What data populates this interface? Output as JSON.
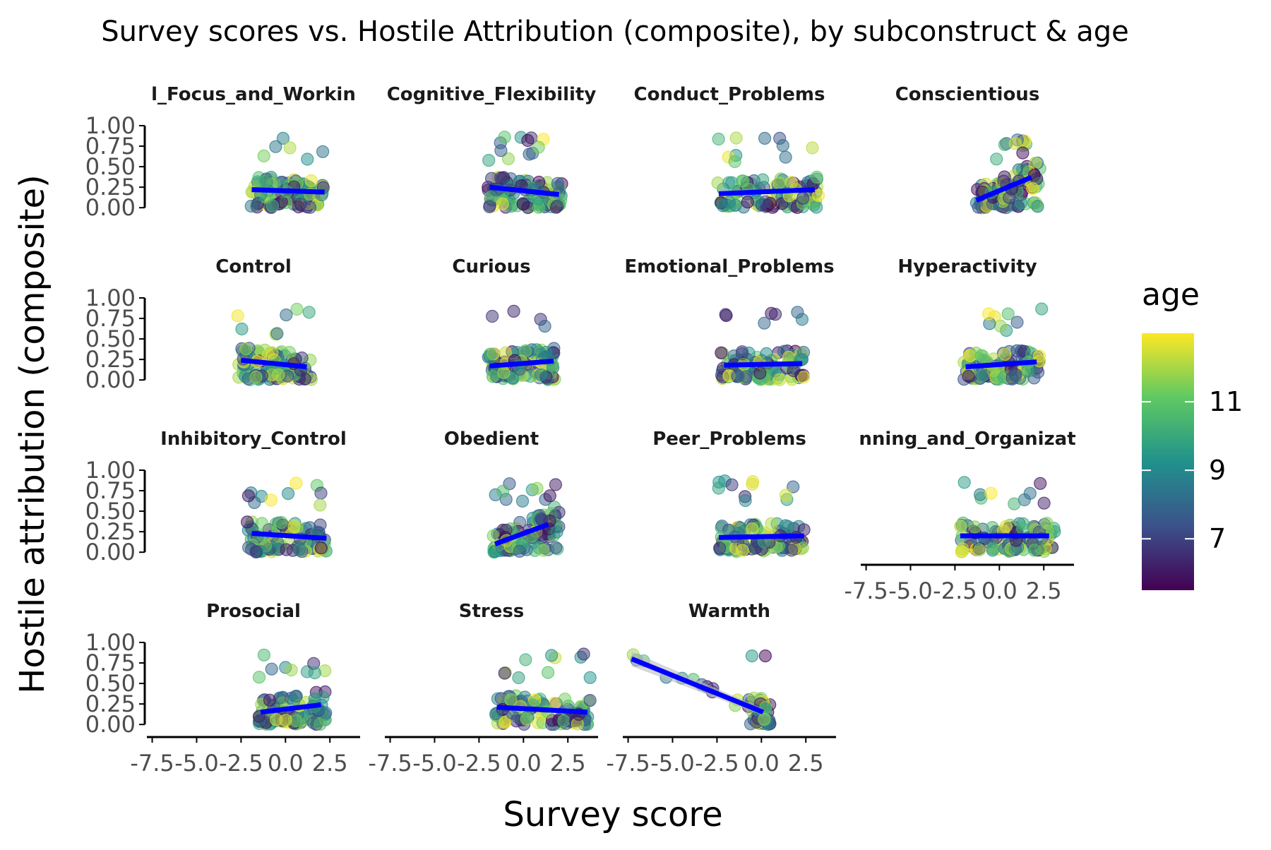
{
  "chart_data": {
    "type": "scatter",
    "title": "Survey scores vs. Hostile Attribution (composite), by subconstruct & age",
    "xlabel": "Survey score",
    "ylabel": "Hostile attribution (composite)",
    "xlim": [
      -7.8,
      4.2
    ],
    "ylim": [
      -0.05,
      1.0
    ],
    "x_ticks": [
      -7.5,
      -5.0,
      -2.5,
      0.0,
      2.5
    ],
    "x_tick_labels": [
      "-7.5",
      "-5.0",
      "-2.5",
      "0.0",
      "2.5"
    ],
    "y_ticks": [
      0,
      0.25,
      0.5,
      0.75,
      1.0
    ],
    "y_tick_labels": [
      "0.00",
      "0.25",
      "0.50",
      "0.75",
      "1.00"
    ],
    "legend": {
      "title": "age",
      "placement": "right",
      "range": [
        5.5,
        13.0
      ],
      "ticks": [
        7,
        9,
        11
      ],
      "tick_labels": [
        "7",
        "9",
        "11"
      ],
      "colormap": "viridis",
      "colors": [
        "#440154",
        "#3b528b",
        "#21918c",
        "#5ec962",
        "#fde725"
      ]
    },
    "fit_line_color": "#0000ff",
    "ribbon_color": "#bdbdbd",
    "panels": [
      {
        "label": "l_Focus_and_Workin",
        "xrange": [
          -2.0,
          2.2
        ],
        "fit": [
          [
            -1.9,
            0.22
          ],
          [
            2.2,
            0.19
          ]
        ]
      },
      {
        "label": "Cognitive_Flexibility",
        "xrange": [
          -2.0,
          2.2
        ],
        "fit": [
          [
            -1.9,
            0.25
          ],
          [
            2.0,
            0.16
          ]
        ]
      },
      {
        "label": "Conduct_Problems",
        "xrange": [
          -2.5,
          3.3
        ],
        "fit": [
          [
            -2.4,
            0.17
          ],
          [
            3.0,
            0.22
          ]
        ]
      },
      {
        "label": "Conscientious",
        "xrange": [
          -1.4,
          2.3
        ],
        "fit": [
          [
            -1.3,
            0.09
          ],
          [
            1.8,
            0.37
          ]
        ]
      },
      {
        "label": "Control",
        "xrange": [
          -2.7,
          1.5
        ],
        "fit": [
          [
            -2.5,
            0.24
          ],
          [
            1.2,
            0.16
          ]
        ]
      },
      {
        "label": "Curious",
        "xrange": [
          -2.0,
          1.8
        ],
        "fit": [
          [
            -1.9,
            0.17
          ],
          [
            1.7,
            0.23
          ]
        ]
      },
      {
        "label": "Emotional_Problems",
        "xrange": [
          -2.3,
          2.5
        ],
        "fit": [
          [
            -2.1,
            0.18
          ],
          [
            2.3,
            0.2
          ]
        ]
      },
      {
        "label": "Hyperactivity",
        "xrange": [
          -2.0,
          2.4
        ],
        "fit": [
          [
            -1.9,
            0.16
          ],
          [
            2.1,
            0.22
          ]
        ]
      },
      {
        "label": "Inhibitory_Control",
        "xrange": [
          -2.2,
          2.3
        ],
        "fit": [
          [
            -1.9,
            0.23
          ],
          [
            2.3,
            0.17
          ]
        ]
      },
      {
        "label": "Obedient",
        "xrange": [
          -1.7,
          2.0
        ],
        "fit": [
          [
            -1.6,
            0.1
          ],
          [
            1.4,
            0.34
          ]
        ]
      },
      {
        "label": "Peer_Problems",
        "xrange": [
          -2.5,
          2.5
        ],
        "fit": [
          [
            -2.4,
            0.18
          ],
          [
            2.4,
            0.2
          ]
        ]
      },
      {
        "label": "nning_and_Organizat",
        "xrange": [
          -2.3,
          3.3
        ],
        "fit": [
          [
            -2.2,
            0.2
          ],
          [
            2.8,
            0.2
          ]
        ]
      },
      {
        "label": "Prosocial",
        "xrange": [
          -1.5,
          2.3
        ],
        "fit": [
          [
            -1.4,
            0.15
          ],
          [
            2.0,
            0.24
          ]
        ]
      },
      {
        "label": "Stress",
        "xrange": [
          -1.6,
          3.8
        ],
        "fit": [
          [
            -1.5,
            0.21
          ],
          [
            3.6,
            0.15
          ]
        ]
      },
      {
        "label": "Warmth",
        "xrange": [
          -7.5,
          0.5
        ],
        "fit": [
          [
            -7.3,
            0.8
          ],
          [
            0.1,
            0.15
          ]
        ]
      }
    ]
  }
}
